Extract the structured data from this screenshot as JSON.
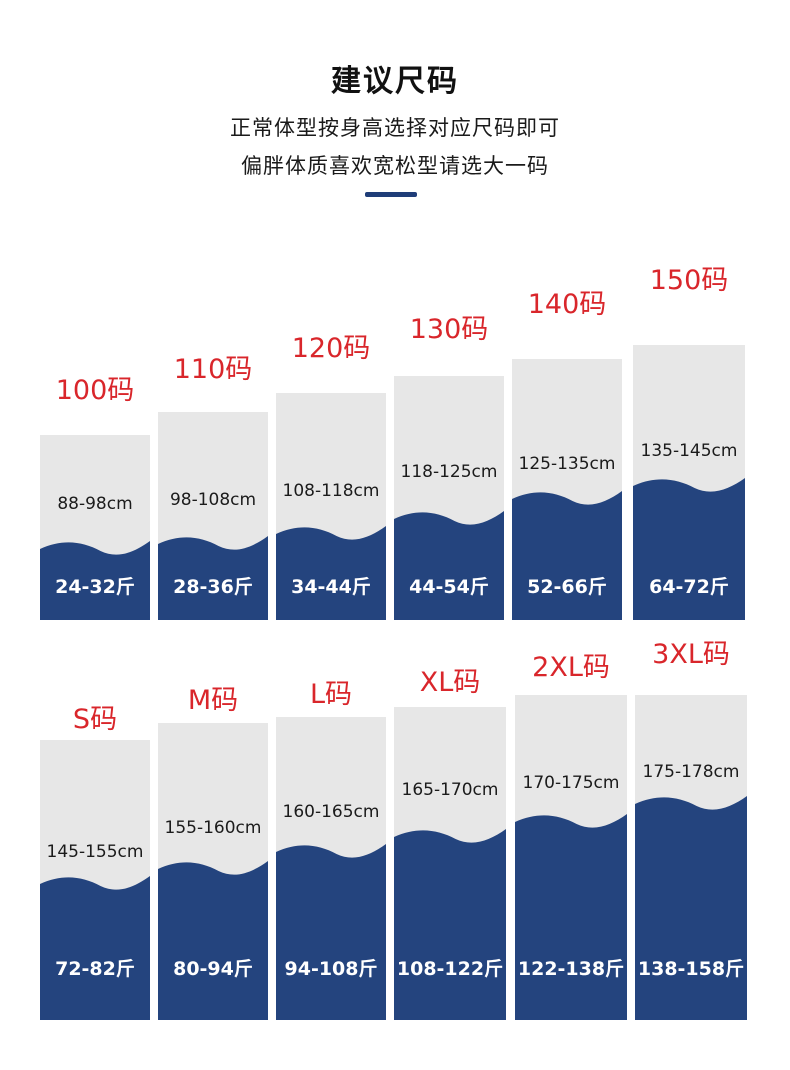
{
  "header": {
    "title": "建议尺码",
    "line1": "正常体型按身高选择对应尺码即可",
    "line2": "偏胖体质喜欢宽松型请选大一码"
  },
  "colors": {
    "navy": "#24447e",
    "grey": "#e7e7e7",
    "red": "#d9262b"
  },
  "row1": [
    {
      "size": "100码",
      "height": "88-98cm",
      "weight": "24-32斤"
    },
    {
      "size": "110码",
      "height": "98-108cm",
      "weight": "28-36斤"
    },
    {
      "size": "120码",
      "height": "108-118cm",
      "weight": "34-44斤"
    },
    {
      "size": "130码",
      "height": "118-125cm",
      "weight": "44-54斤"
    },
    {
      "size": "140码",
      "height": "125-135cm",
      "weight": "52-66斤"
    },
    {
      "size": "150码",
      "height": "135-145cm",
      "weight": "64-72斤"
    }
  ],
  "row2": [
    {
      "size": "S码",
      "height": "145-155cm",
      "weight": "72-82斤"
    },
    {
      "size": "M码",
      "height": "155-160cm",
      "weight": "80-94斤"
    },
    {
      "size": "L码",
      "height": "160-165cm",
      "weight": "94-108斤"
    },
    {
      "size": "XL码",
      "height": "165-170cm",
      "weight": "108-122斤"
    },
    {
      "size": "2XL码",
      "height": "170-175cm",
      "weight": "122-138斤"
    },
    {
      "size": "3XL码",
      "height": "175-178cm",
      "weight": "138-158斤"
    }
  ]
}
